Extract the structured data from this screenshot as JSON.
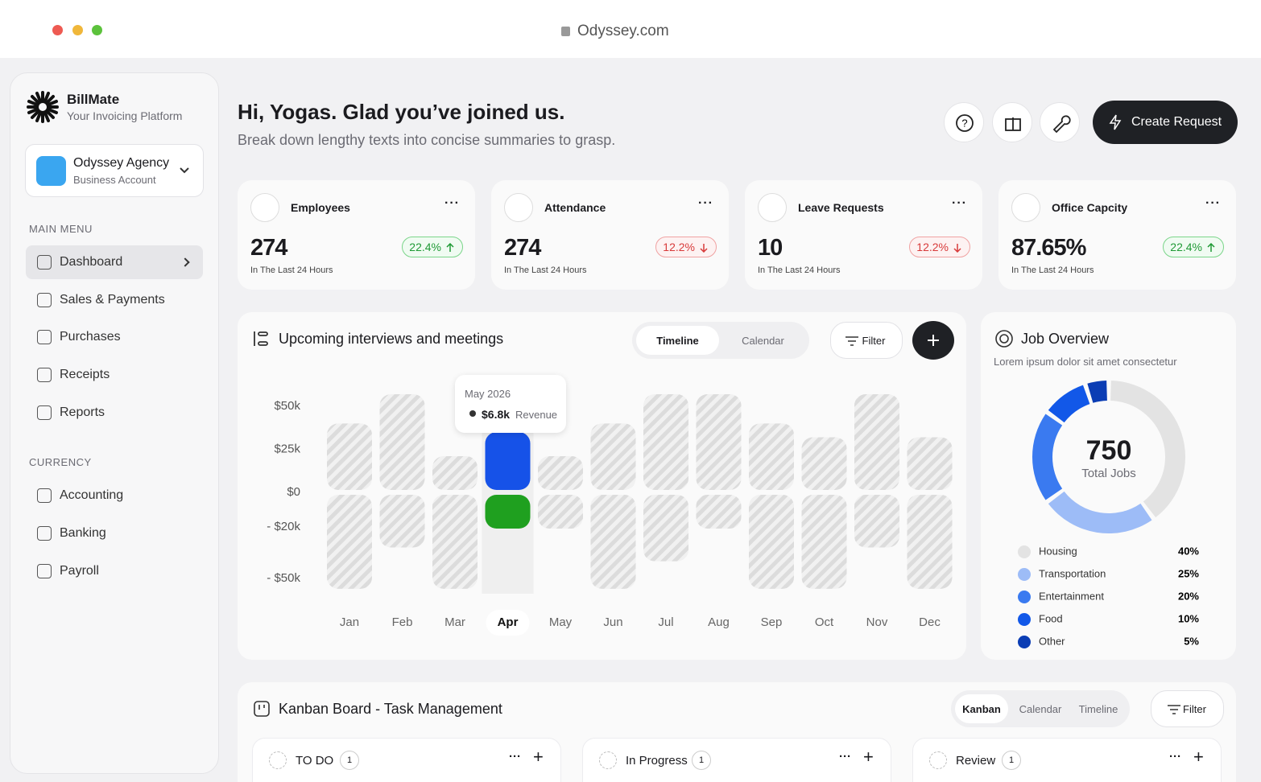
{
  "browser": {
    "url": "Odyssey.com"
  },
  "sidebar": {
    "brand": "BillMate",
    "tagline": "Your Invoicing Platform",
    "account": {
      "name": "Odyssey Agency",
      "type": "Business Account"
    },
    "main_menu_title": "MAIN MENU",
    "main_menu": [
      "Dashboard",
      "Sales & Payments",
      "Purchases",
      "Receipts",
      "Reports"
    ],
    "currency_title": "CURRENCY",
    "currency_menu": [
      "Accounting",
      "Banking",
      "Payroll"
    ]
  },
  "header": {
    "title": "Hi, Yogas. Glad you’ve joined us.",
    "subtitle": "Break down lengthy texts into concise summaries to grasp.",
    "button": "Create Request"
  },
  "stats": [
    {
      "title": "Employees",
      "value": "274",
      "change": "22.4%",
      "trend": "up",
      "note": "In The Last 24 Hours"
    },
    {
      "title": "Attendance",
      "value": "274",
      "change": "12.2%",
      "trend": "down",
      "note": "In The Last 24 Hours"
    },
    {
      "title": "Leave Requests",
      "value": "10",
      "change": "12.2%",
      "trend": "down",
      "note": "In The Last 24 Hours"
    },
    {
      "title": "Office Capcity",
      "value": "87.65%",
      "change": "22.4%",
      "trend": "up",
      "note": "In The Last 24 Hours"
    }
  ],
  "interviews": {
    "title": "Upcoming interviews and meetings",
    "tabs": [
      "Timeline",
      "Calendar"
    ],
    "filter": "Filter",
    "tooltip": {
      "date": "May 2026",
      "value": "$6.8k",
      "label": "Revenue"
    },
    "chart": {
      "type": "bar",
      "categories": [
        "Jan",
        "Feb",
        "Mar",
        "Apr",
        "May",
        "Jun",
        "Jul",
        "Aug",
        "Sep",
        "Oct",
        "Nov",
        "Dec"
      ],
      "selected": 3,
      "series": [
        {
          "color": "#d9d9d9",
          "highlight_color": "#1652e8",
          "values": [
            40,
            57,
            21,
            35,
            21,
            40,
            57,
            57,
            40,
            32,
            57,
            32
          ]
        },
        {
          "color": "#d9d9d9",
          "highlight_color": "#1fa01f",
          "values": [
            -56,
            -32,
            -56,
            -21,
            -21,
            -56,
            -40,
            -21,
            -56,
            -56,
            -32,
            -56
          ]
        }
      ],
      "ylim": [
        -60,
        60
      ],
      "yticks": [
        {
          "value": 50,
          "label": "$50k"
        },
        {
          "value": 25,
          "label": "$25k"
        },
        {
          "value": 0,
          "label": "$0"
        },
        {
          "value": -20,
          "label": "- $20k"
        },
        {
          "value": -50,
          "label": "- $50k"
        }
      ]
    }
  },
  "job_overview": {
    "title": "Job Overview",
    "subtitle": "Lorem ipsum dolor sit amet consectetur",
    "center_value": "750",
    "center_label": "Total Jobs",
    "chart": {
      "type": "pie",
      "categories": [
        "Housing",
        "Transportation",
        "Entertainment",
        "Food",
        "Other"
      ],
      "values": [
        40,
        25,
        20,
        10,
        5
      ],
      "value_labels": [
        "40%",
        "25%",
        "20%",
        "10%",
        "5%"
      ],
      "colors": [
        "#e3e3e3",
        "#9dbcf7",
        "#3a7af0",
        "#1258e8",
        "#0b3db4"
      ]
    }
  },
  "kanban": {
    "title": "Kanban Board - Task Management",
    "tabs": [
      "Kanban",
      "Calendar",
      "Timeline"
    ],
    "filter": "Filter",
    "columns": [
      {
        "name": "TO DO",
        "count": "1"
      },
      {
        "name": "In Progress",
        "count": "1"
      },
      {
        "name": "Review",
        "count": "1"
      }
    ]
  }
}
